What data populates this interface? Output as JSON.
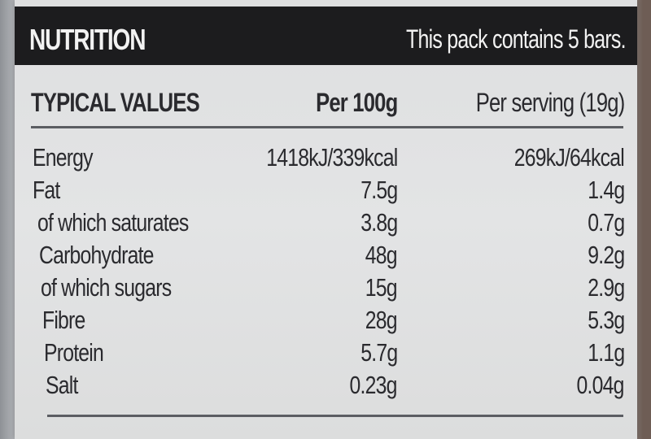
{
  "header": {
    "title": "NUTRITION",
    "pack_info": "This pack contains 5 bars."
  },
  "columns": {
    "label": "TYPICAL VALUES",
    "per100": "Per 100g",
    "perServing": "Per serving (19g)"
  },
  "rows": [
    {
      "label": "Energy",
      "per100": "1418kJ/339kcal",
      "perServing": "269kJ/64kcal"
    },
    {
      "label": "Fat",
      "per100": "7.5g",
      "perServing": "1.4g"
    },
    {
      "label": "of which saturates",
      "per100": "3.8g",
      "perServing": "0.7g"
    },
    {
      "label": "Carbohydrate",
      "per100": "48g",
      "perServing": "9.2g"
    },
    {
      "label": "of which sugars",
      "per100": "15g",
      "perServing": "2.9g"
    },
    {
      "label": "Fibre",
      "per100": "28g",
      "perServing": "5.3g"
    },
    {
      "label": "Protein",
      "per100": "5.7g",
      "perServing": "1.1g"
    },
    {
      "label": "Salt",
      "per100": "0.23g",
      "perServing": "0.04g"
    }
  ],
  "colors": {
    "header_bg": "#1c1c1e",
    "label_bg": "#e2e3e4",
    "text": "#2a2a2e",
    "rule": "#5b5d62"
  }
}
